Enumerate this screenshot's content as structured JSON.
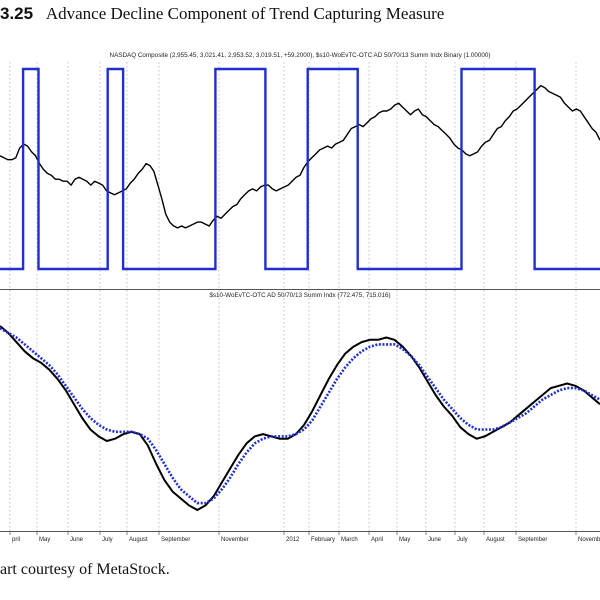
{
  "figure": {
    "number": "3.25",
    "title": "Advance Decline Component of Trend Capturing Measure",
    "caption": "art courtesy of MetaStock."
  },
  "colors": {
    "price": "#000000",
    "signal": "#1f2fd0",
    "smoothed": "#1f2fd0",
    "raw": "#000000",
    "grid": "#9a9a9a",
    "divider": "#555555"
  },
  "chart_data": [
    {
      "type": "line",
      "title": "NASDAQ Composite (2,955.45, 3,021.41, 2,953.52, 3,019.51, +59.2000), $s10-WoEvTC-OTC AD 50/70/13 Summ Indx Binary (1.00000)",
      "xlabel": "",
      "ylabel": "",
      "grid": "vertical dotted",
      "series": [
        {
          "name": "NASDAQ Composite",
          "values": [
            56,
            55,
            54,
            54,
            55,
            60,
            62,
            61,
            58,
            56,
            52,
            49,
            47,
            46,
            44,
            44,
            43,
            43,
            41,
            44,
            45,
            44,
            43,
            41,
            43,
            42,
            41,
            38,
            37,
            36,
            37,
            38,
            39,
            42,
            44,
            47,
            49,
            52,
            51,
            48,
            41,
            34,
            26,
            22,
            20,
            19,
            20,
            19,
            20,
            21,
            22,
            22,
            21,
            20,
            23,
            25,
            24,
            26,
            28,
            30,
            31,
            34,
            36,
            38,
            39,
            38,
            40,
            41,
            41,
            39,
            38,
            39,
            40,
            41,
            43,
            45,
            46,
            50,
            53,
            55,
            57,
            59,
            60,
            61,
            60,
            62,
            63,
            64,
            67,
            70,
            71,
            72,
            71,
            73,
            75,
            76,
            78,
            79,
            79,
            80,
            82,
            83,
            81,
            79,
            77,
            79,
            80,
            77,
            76,
            74,
            72,
            71,
            69,
            67,
            65,
            62,
            60,
            59,
            57,
            56,
            57,
            58,
            61,
            63,
            64,
            67,
            70,
            71,
            74,
            76,
            79,
            80,
            82,
            84,
            86,
            88,
            90,
            92,
            91,
            89,
            88,
            87,
            86,
            83,
            81,
            79,
            80,
            79,
            76,
            73,
            70,
            68,
            64
          ]
        },
        {
          "name": "$s10-WoEvTC-OTC AD 50/70/13 Summ Indx Binary",
          "values": [
            0,
            0,
            0,
            0,
            0,
            0,
            1,
            1,
            1,
            1,
            0,
            0,
            0,
            0,
            0,
            0,
            0,
            0,
            0,
            0,
            0,
            0,
            0,
            0,
            0,
            0,
            0,
            0,
            1,
            1,
            1,
            1,
            0,
            0,
            0,
            0,
            0,
            0,
            0,
            0,
            0,
            0,
            0,
            0,
            0,
            0,
            0,
            0,
            0,
            0,
            0,
            0,
            0,
            0,
            0,
            0,
            1,
            1,
            1,
            1,
            1,
            1,
            1,
            1,
            1,
            1,
            1,
            1,
            1,
            0,
            0,
            0,
            0,
            0,
            0,
            0,
            0,
            0,
            0,
            0,
            1,
            1,
            1,
            1,
            1,
            1,
            1,
            1,
            1,
            1,
            1,
            1,
            1,
            0,
            0,
            0,
            0,
            0,
            0,
            0,
            0,
            0,
            0,
            0,
            0,
            0,
            0,
            0,
            0,
            0,
            0,
            0,
            0,
            0,
            0,
            0,
            0,
            0,
            0,
            0,
            1,
            1,
            1,
            1,
            1,
            1,
            1,
            1,
            1,
            1,
            1,
            1,
            1,
            1,
            1,
            1,
            1,
            1,
            1,
            0,
            0,
            0,
            0,
            0,
            0,
            0,
            0,
            0,
            0,
            0,
            0,
            0,
            0,
            0,
            0,
            0,
            0
          ]
        }
      ]
    },
    {
      "type": "line",
      "title": "$s10-WoEvTC-OTC AD 50/70/13 Summ Indx (772.475, 715.016)",
      "xlabel": "",
      "ylabel": "",
      "grid": "vertical dotted",
      "series": [
        {
          "name": "$s10-WoEvTC-OTC AD 50/70/13 Summ Indx",
          "values": [
            80,
            77,
            73,
            69,
            66,
            64,
            61,
            57,
            52,
            46,
            40,
            35,
            32,
            30,
            31,
            33,
            34,
            33,
            28,
            20,
            13,
            8,
            5,
            2,
            0,
            2,
            6,
            12,
            18,
            24,
            29,
            32,
            33,
            32,
            31,
            31,
            33,
            37,
            43,
            50,
            57,
            63,
            68,
            71,
            73,
            74,
            74,
            75,
            74,
            71,
            67,
            62,
            56,
            50,
            45,
            41,
            36,
            33,
            31,
            32,
            34,
            36,
            38,
            41,
            44,
            47,
            50,
            53,
            54,
            55,
            54,
            52,
            49,
            46
          ]
        },
        {
          "name": "$s10-WoEvTC-OTC AD 50/70/13 Summ Indx (smoothed)",
          "values": [
            79,
            77,
            75,
            72,
            69,
            66,
            63,
            59,
            54,
            49,
            44,
            40,
            37,
            35,
            34,
            34,
            34,
            33,
            31,
            26,
            20,
            14,
            9,
            6,
            3,
            3,
            5,
            9,
            14,
            20,
            25,
            29,
            31,
            32,
            32,
            32,
            33,
            35,
            39,
            45,
            51,
            57,
            62,
            66,
            69,
            71,
            72,
            72,
            72,
            70,
            67,
            63,
            58,
            53,
            48,
            44,
            40,
            37,
            35,
            35,
            35,
            36,
            38,
            40,
            42,
            45,
            48,
            50,
            52,
            53,
            53,
            52,
            50,
            48
          ]
        }
      ]
    }
  ],
  "axis": {
    "months": [
      "pril",
      "May",
      "June",
      "July",
      "August",
      "September",
      "November",
      "2012",
      "February",
      "March",
      "April",
      "May",
      "June",
      "July",
      "August",
      "September",
      "November"
    ]
  }
}
